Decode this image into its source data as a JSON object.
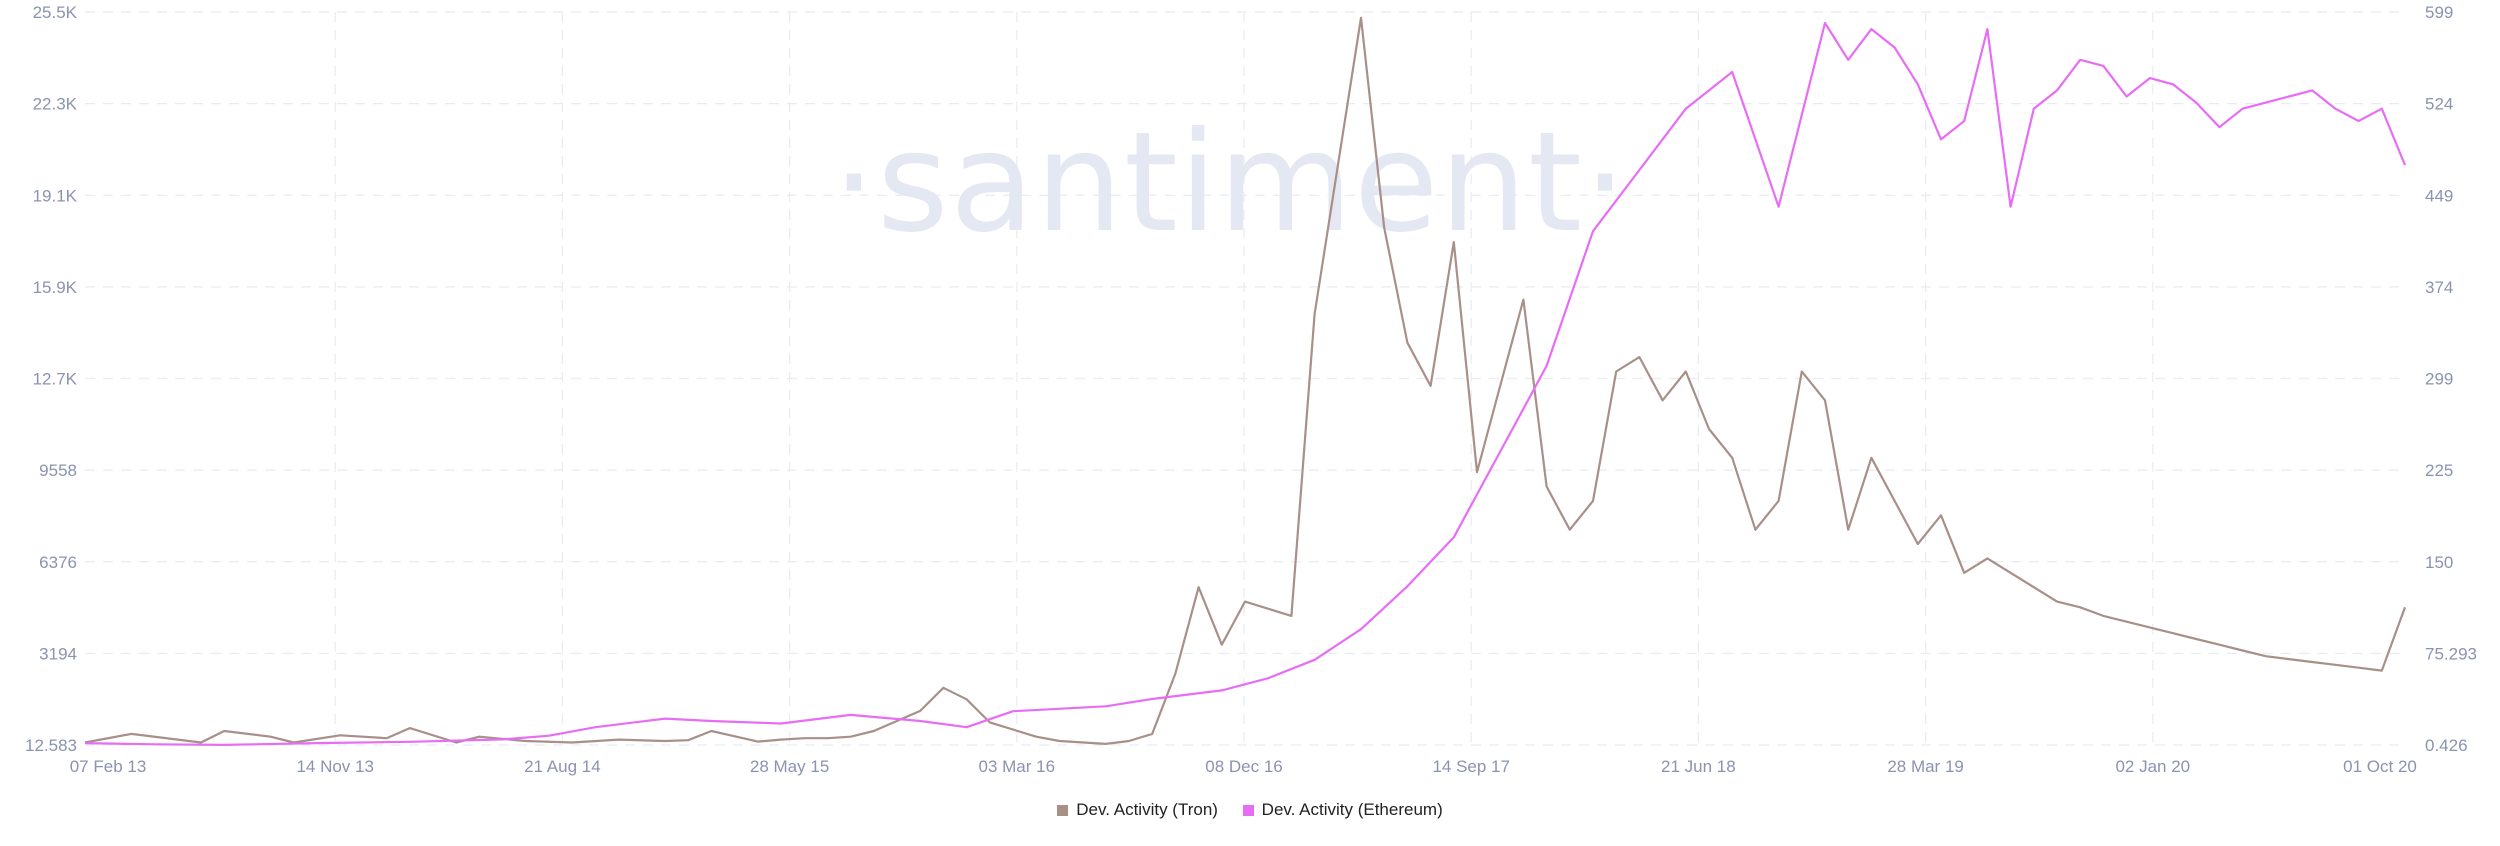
{
  "chart_data": {
    "type": "line",
    "watermark": "·santiment·",
    "x_ticks": [
      "07 Feb 13",
      "14 Nov 13",
      "21 Aug 14",
      "28 May 15",
      "03 Mar 16",
      "08 Dec 16",
      "14 Sep 17",
      "21 Jun 18",
      "28 Mar 19",
      "02 Jan 20",
      "01 Oct 20"
    ],
    "y_left_ticks": [
      "12.583",
      "3194",
      "6376",
      "9558",
      "12.7K",
      "15.9K",
      "19.1K",
      "22.3K",
      "25.5K"
    ],
    "y_right_ticks": [
      "0.426",
      "75.293",
      "150",
      "225",
      "299",
      "374",
      "449",
      "524",
      "599"
    ],
    "y_left_range": [
      12.583,
      25500
    ],
    "y_right_range": [
      0.426,
      599
    ],
    "grid": true,
    "legend_position": "bottom-center",
    "series": [
      {
        "name": "Dev. Activity (Tron)",
        "axis": "left",
        "color": "#a89089",
        "x": [
          0,
          2,
          5,
          6,
          8,
          9,
          11,
          13,
          14,
          16,
          17,
          19,
          21,
          23,
          25,
          26,
          27,
          29,
          30,
          31,
          32,
          33,
          34,
          36,
          37,
          38,
          39,
          41,
          42,
          44,
          45,
          46,
          47,
          48,
          49,
          50,
          52,
          53,
          55,
          56,
          57,
          58,
          59,
          60,
          62,
          63,
          64,
          65,
          66,
          67,
          68,
          69,
          70,
          71,
          72,
          73,
          74,
          75,
          76,
          77,
          78,
          79,
          80,
          81,
          82,
          83,
          84,
          85,
          86,
          87,
          88,
          89,
          90,
          91,
          92,
          93,
          94,
          95,
          96,
          97,
          98,
          99,
          100
        ],
        "y": [
          100,
          400,
          100,
          500,
          300,
          100,
          350,
          250,
          600,
          100,
          300,
          150,
          100,
          200,
          150,
          180,
          500,
          130,
          200,
          250,
          250,
          300,
          500,
          1200,
          2000,
          1600,
          800,
          300,
          150,
          50,
          150,
          400,
          2500,
          5500,
          3500,
          5000,
          4500,
          15000,
          25300,
          18000,
          14000,
          12500,
          17500,
          9500,
          15500,
          9000,
          7500,
          8500,
          13000,
          13500,
          12000,
          13000,
          11000,
          10000,
          7500,
          8500,
          13000,
          12000,
          7500,
          10000,
          8500,
          7000,
          8000,
          6000,
          6500,
          6000,
          5500,
          5000,
          4800,
          4500,
          4300,
          4100,
          3900,
          3700,
          3500,
          3300,
          3100,
          3000,
          2900,
          2800,
          2700,
          2600,
          4800
        ]
      },
      {
        "name": "Dev. Activity (Ethereum)",
        "axis": "right",
        "color": "#e76df5",
        "x": [
          0,
          3,
          6,
          10,
          14,
          18,
          20,
          22,
          25,
          27,
          30,
          33,
          36,
          38,
          40,
          44,
          46,
          49,
          51,
          53,
          55,
          57,
          59,
          61,
          63,
          65,
          67,
          69,
          71,
          73,
          75,
          76,
          77,
          78,
          79,
          80,
          81,
          82,
          83,
          84,
          85,
          86,
          87,
          88,
          89,
          90,
          91,
          92,
          93,
          94,
          95,
          96,
          97,
          98,
          99,
          100
        ],
        "y": [
          2,
          1,
          0.5,
          2,
          3,
          5,
          8,
          15,
          22,
          20,
          18,
          25,
          20,
          15,
          28,
          32,
          38,
          45,
          55,
          70,
          95,
          130,
          170,
          240,
          310,
          420,
          470,
          520,
          550,
          440,
          590,
          560,
          585,
          570,
          540,
          495,
          510,
          585,
          440,
          520,
          535,
          560,
          555,
          530,
          545,
          540,
          525,
          505,
          520,
          525,
          530,
          535,
          520,
          510,
          520,
          474
        ]
      }
    ]
  },
  "legend": {
    "items": [
      {
        "label": "Dev. Activity (Tron)",
        "color": "#a89089"
      },
      {
        "label": "Dev. Activity (Ethereum)",
        "color": "#e76df5"
      }
    ]
  }
}
